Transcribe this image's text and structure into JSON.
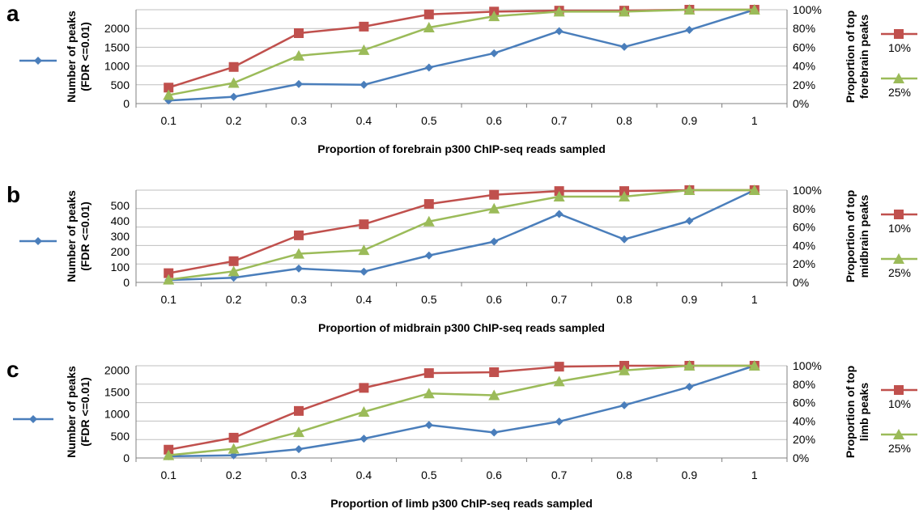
{
  "chart_data": [
    {
      "type": "line",
      "panel": "a",
      "x": [
        0.1,
        0.2,
        0.3,
        0.4,
        0.5,
        0.6,
        0.7,
        0.8,
        0.9,
        1
      ],
      "x_ticks": [
        "0.1",
        "0.2",
        "0.3",
        "0.4",
        "0.5",
        "0.6",
        "0.7",
        "0.8",
        "0.9",
        "1"
      ],
      "xlabel": "Proportion of forebrain p300 ChIP-seq reads sampled",
      "ylabel_lines": [
        "Number of peaks",
        "(FDR <=0.01)"
      ],
      "y2label_lines": [
        "Proportion of top",
        "forebrain peaks"
      ],
      "ylim": [
        0,
        2500
      ],
      "yticks": [
        "0",
        "500",
        "1000",
        "1500",
        "2000"
      ],
      "y2lim": [
        0,
        100
      ],
      "y2ticks": [
        "0%",
        "20%",
        "40%",
        "60%",
        "80%",
        "100%"
      ],
      "grid": true,
      "legend_position": "right",
      "series": [
        {
          "axis": "left",
          "marker": "diamond",
          "color": "#4a7ebb",
          "values": [
            80,
            180,
            520,
            500,
            960,
            1340,
            1930,
            1510,
            1960,
            2500
          ]
        },
        {
          "name": "10%",
          "axis": "right",
          "marker": "square",
          "color": "#c0504d",
          "values": [
            17,
            39,
            75,
            82,
            95,
            98,
            99,
            99,
            100,
            100
          ]
        },
        {
          "name": "25%",
          "axis": "right",
          "marker": "triangle",
          "color": "#9bbb59",
          "values": [
            9,
            22,
            51,
            57,
            81,
            93,
            98,
            98,
            100,
            100
          ]
        }
      ]
    },
    {
      "type": "line",
      "panel": "b",
      "x": [
        0.1,
        0.2,
        0.3,
        0.4,
        0.5,
        0.6,
        0.7,
        0.8,
        0.9,
        1
      ],
      "x_ticks": [
        "0.1",
        "0.2",
        "0.3",
        "0.4",
        "0.5",
        "0.6",
        "0.7",
        "0.8",
        "0.9",
        "1"
      ],
      "xlabel": "Proportion of midbrain p300 ChIP-seq reads sampled",
      "ylabel_lines": [
        "Number of peaks",
        "(FDR <=0.01)"
      ],
      "y2label_lines": [
        "Proportion of top",
        "midbrain peaks"
      ],
      "ylim": [
        0,
        600
      ],
      "yticks": [
        "0",
        "100",
        "200",
        "300",
        "400",
        "500"
      ],
      "y2lim": [
        0,
        100
      ],
      "y2ticks": [
        "0%",
        "20%",
        "40%",
        "60%",
        "80%",
        "100%"
      ],
      "grid": true,
      "legend_position": "right",
      "series": [
        {
          "axis": "left",
          "marker": "diamond",
          "color": "#4a7ebb",
          "values": [
            15,
            30,
            90,
            70,
            175,
            265,
            445,
            280,
            400,
            600
          ]
        },
        {
          "name": "10%",
          "axis": "right",
          "marker": "square",
          "color": "#c0504d",
          "values": [
            10,
            23,
            51,
            63,
            85,
            95,
            99,
            99,
            100,
            100
          ]
        },
        {
          "name": "25%",
          "axis": "right",
          "marker": "triangle",
          "color": "#9bbb59",
          "values": [
            3,
            12,
            31,
            35,
            66,
            80,
            93,
            93,
            100,
            100
          ]
        }
      ]
    },
    {
      "type": "line",
      "panel": "c",
      "x": [
        0.1,
        0.2,
        0.3,
        0.4,
        0.5,
        0.6,
        0.7,
        0.8,
        0.9,
        1
      ],
      "x_ticks": [
        "0.1",
        "0.2",
        "0.3",
        "0.4",
        "0.5",
        "0.6",
        "0.7",
        "0.8",
        "0.9",
        "1"
      ],
      "xlabel": "Proportion of limb p300 ChIP-seq reads sampled",
      "ylabel_lines": [
        "Number of peaks",
        "(FDR <=0.01)"
      ],
      "y2label_lines": [
        "Proportion of top",
        "limb peaks"
      ],
      "ylim": [
        0,
        2100
      ],
      "yticks": [
        "0",
        "500",
        "1000",
        "1500",
        "2000"
      ],
      "y2lim": [
        0,
        100
      ],
      "y2ticks": [
        "0%",
        "20%",
        "40%",
        "60%",
        "80%",
        "100%"
      ],
      "grid": true,
      "legend_position": "right",
      "series": [
        {
          "axis": "left",
          "marker": "diamond",
          "color": "#4a7ebb",
          "values": [
            40,
            60,
            200,
            440,
            750,
            580,
            830,
            1200,
            1620,
            2100
          ]
        },
        {
          "name": "10%",
          "axis": "right",
          "marker": "square",
          "color": "#c0504d",
          "values": [
            9,
            22,
            51,
            76,
            92,
            93,
            99,
            100,
            100,
            100
          ]
        },
        {
          "name": "25%",
          "axis": "right",
          "marker": "triangle",
          "color": "#9bbb59",
          "values": [
            3,
            10,
            28,
            50,
            70,
            68,
            83,
            95,
            100,
            100
          ]
        }
      ]
    }
  ]
}
